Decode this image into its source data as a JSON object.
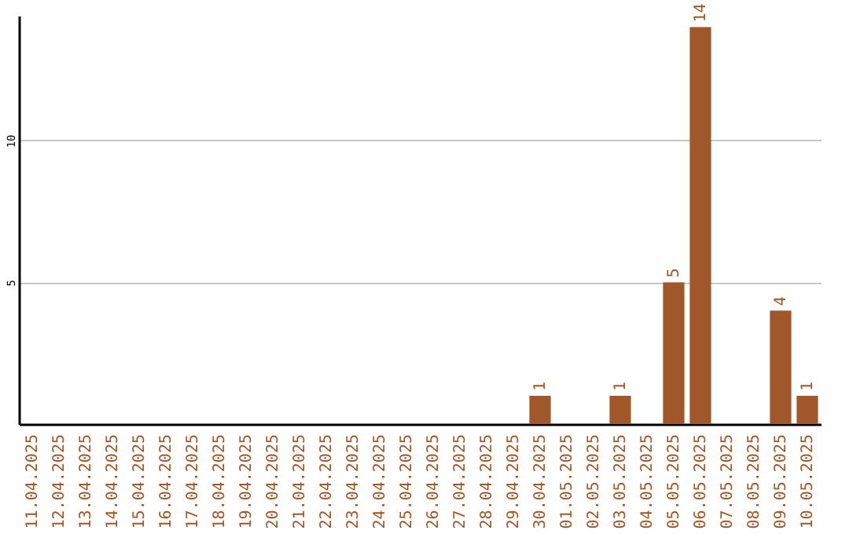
{
  "chart_data": {
    "type": "bar",
    "categories": [
      "11.04.2025",
      "12.04.2025",
      "13.04.2025",
      "14.04.2025",
      "15.04.2025",
      "16.04.2025",
      "17.04.2025",
      "18.04.2025",
      "19.04.2025",
      "20.04.2025",
      "21.04.2025",
      "22.04.2025",
      "23.04.2025",
      "24.04.2025",
      "25.04.2025",
      "26.04.2025",
      "27.04.2025",
      "28.04.2025",
      "29.04.2025",
      "30.04.2025",
      "01.05.2025",
      "02.05.2025",
      "03.05.2025",
      "04.05.2025",
      "05.05.2025",
      "06.05.2025",
      "07.05.2025",
      "08.05.2025",
      "09.05.2025",
      "10.05.2025"
    ],
    "values": [
      null,
      null,
      null,
      null,
      null,
      null,
      null,
      null,
      null,
      null,
      null,
      null,
      null,
      null,
      null,
      null,
      null,
      null,
      null,
      1,
      null,
      null,
      1,
      null,
      5,
      14,
      null,
      null,
      4,
      1
    ],
    "color": "#a0572a",
    "ylim": [
      0,
      14.4
    ],
    "yticks": [
      5,
      10
    ],
    "grid": "y",
    "data_labels": true
  }
}
